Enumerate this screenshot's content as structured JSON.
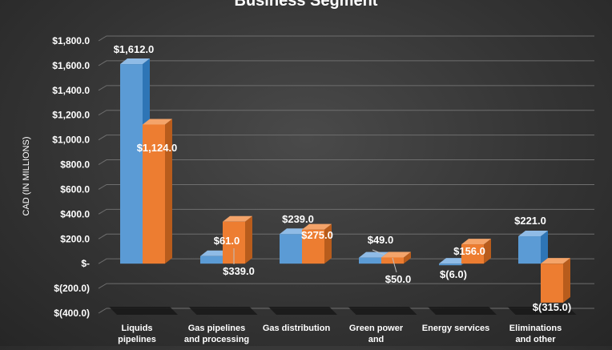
{
  "chart_data": {
    "type": "bar",
    "title": "Business Segment",
    "ylabel": "CAD (IN MILLIONS)",
    "xlabel": "",
    "categories": [
      [
        "Liquids",
        "pipelines"
      ],
      [
        "Gas pipelines",
        "and processing"
      ],
      [
        "Gas distribution"
      ],
      [
        "Green power",
        "and"
      ],
      [
        "Energy services"
      ],
      [
        "Eliminations",
        "and other"
      ]
    ],
    "series": [
      {
        "values": [
          1612.0,
          61.0,
          239.0,
          49.0,
          -6.0,
          221.0
        ],
        "labels": [
          "$1,612.0",
          "$61.0",
          "$239.0",
          "$49.0",
          "$(6.0)",
          "$221.0"
        ]
      },
      {
        "values": [
          1124.0,
          339.0,
          275.0,
          50.0,
          156.0,
          -315.0
        ],
        "labels": [
          "$1,124.0",
          "$339.0",
          "$275.0",
          "$50.0",
          "$156.0",
          "$(315.0)"
        ]
      }
    ],
    "ylim": [
      -400,
      1800
    ],
    "yticks": [
      1800,
      1600,
      1400,
      1200,
      1000,
      800,
      600,
      400,
      200,
      0,
      -200,
      -400
    ],
    "ytick_labels": [
      "$1,800.0",
      "$1,600.0",
      "$1,400.0",
      "$1,200.0",
      "$1,000.0",
      "$800.0",
      "$600.0",
      "$400.0",
      "$200.0",
      "$-",
      "$(200.0)",
      "$(400.0)"
    ],
    "grid": true,
    "legend": "none"
  },
  "colors": {
    "series1_front": "#5b9bd5",
    "series1_side": "#2e75b6",
    "series1_top": "#8fbbe6",
    "series2_front": "#ed7d31",
    "series2_side": "#b85c1c",
    "series2_top": "#f4a46a",
    "grid": "#6e6e6e"
  }
}
